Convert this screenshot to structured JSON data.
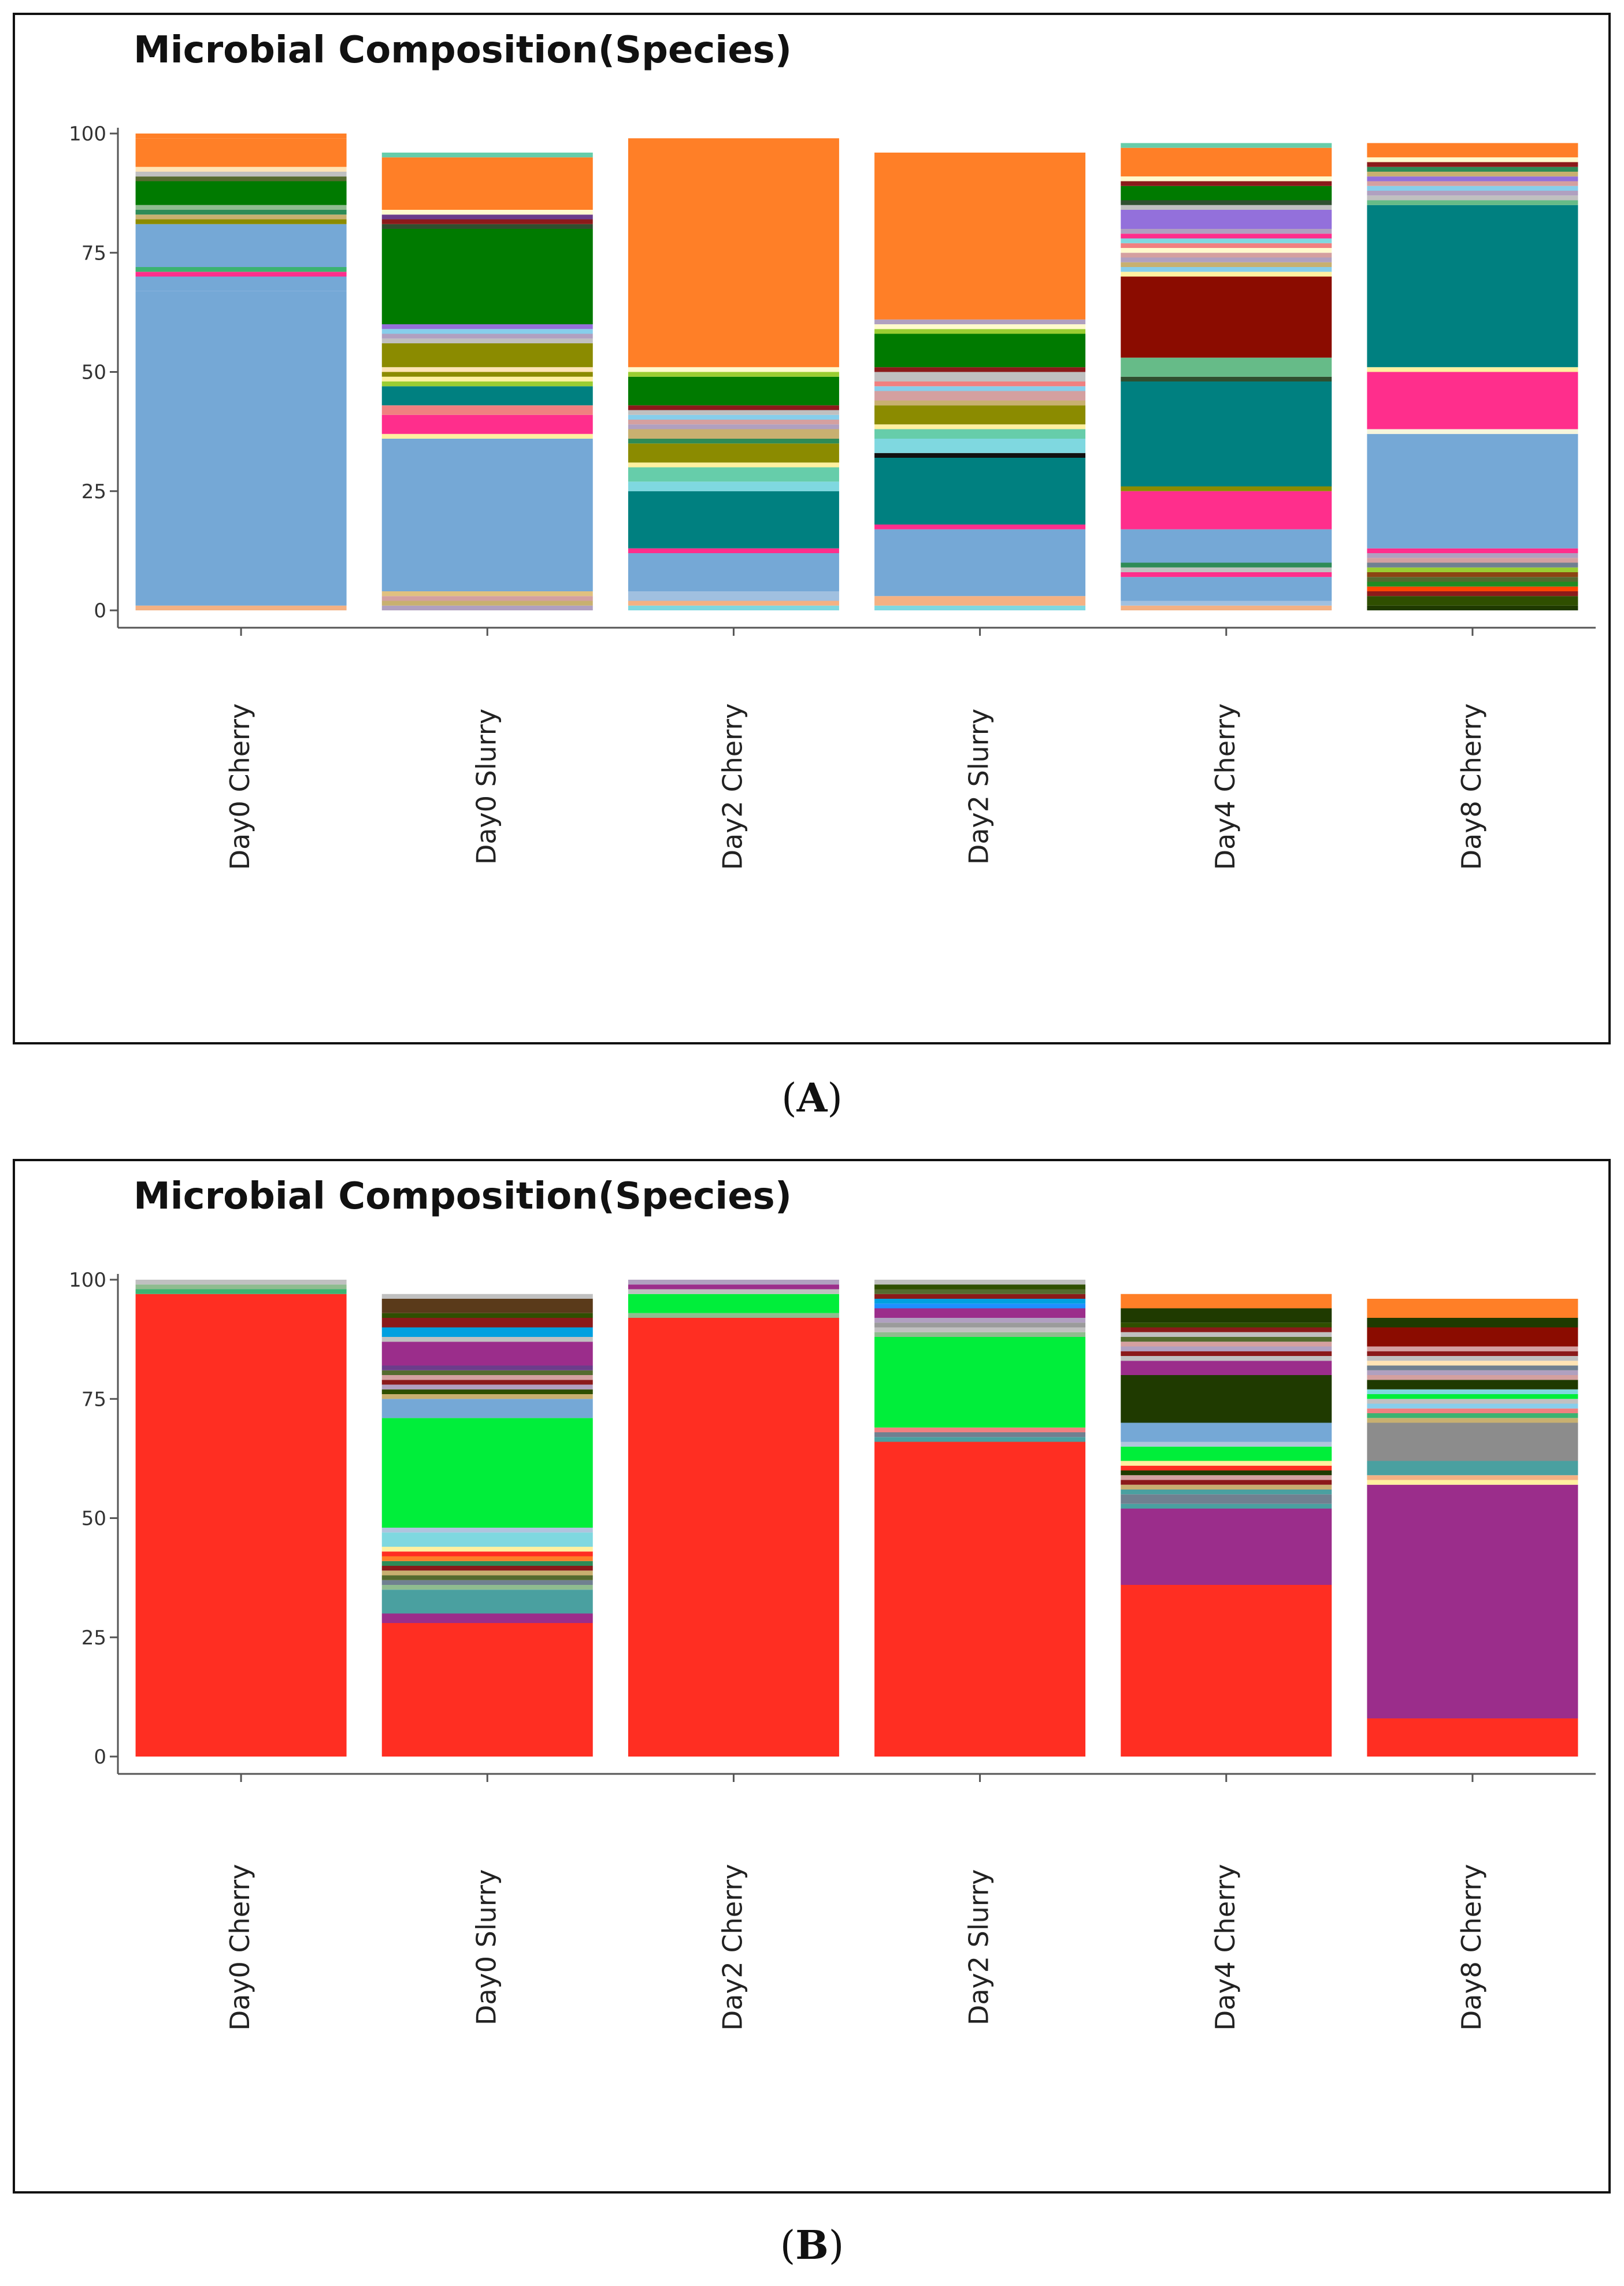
{
  "figure": {
    "caption_a": "A",
    "caption_b": "B"
  },
  "colors": {
    "axis": "#555555",
    "tick_text": "#333333",
    "label_text": "#222222"
  },
  "chart_data": [
    {
      "type": "bar",
      "stacked": true,
      "title": "Microbial Composition(Species)",
      "xlabel": "",
      "ylabel": "",
      "ylim": [
        0,
        100
      ],
      "yticks": [
        0,
        25,
        50,
        75,
        100
      ],
      "grid": false,
      "categories": [
        "Day0 Cherry",
        "Day0 Slurry",
        "Day2 Cherry",
        "Day2 Slurry",
        "Day4 Cherry",
        "Day8 Cherry"
      ],
      "stacks": [
        [
          {
            "v": 1,
            "c": "#f4b183"
          },
          {
            "v": 66,
            "c": "#75a8d6"
          },
          {
            "v": 3,
            "c": "#75a8d6"
          },
          {
            "v": 1,
            "c": "#ff2e8c"
          },
          {
            "v": 1,
            "c": "#3cb371"
          },
          {
            "v": 9,
            "c": "#75a8d6"
          },
          {
            "v": 1,
            "c": "#8b8b00"
          },
          {
            "v": 1,
            "c": "#c8b070"
          },
          {
            "v": 1,
            "c": "#2e8b57"
          },
          {
            "v": 1,
            "c": "#8fbc8f"
          },
          {
            "v": 5,
            "c": "#007a00"
          },
          {
            "v": 1,
            "c": "#556b2f"
          },
          {
            "v": 1,
            "c": "#c0c0c0"
          },
          {
            "v": 1,
            "c": "#ffe4b5"
          },
          {
            "v": 6,
            "c": "#ff7f27"
          },
          {
            "v": 1,
            "c": "#ff7f27"
          }
        ],
        [
          {
            "v": 1,
            "c": "#b0a0c0"
          },
          {
            "v": 1,
            "c": "#c8b070"
          },
          {
            "v": 1,
            "c": "#d4a0a0"
          },
          {
            "v": 1,
            "c": "#e0c080"
          },
          {
            "v": 32,
            "c": "#75a8d6"
          },
          {
            "v": 1,
            "c": "#fff0a0"
          },
          {
            "v": 4,
            "c": "#ff2e8c"
          },
          {
            "v": 2,
            "c": "#f08080"
          },
          {
            "v": 4,
            "c": "#008080"
          },
          {
            "v": 1,
            "c": "#9acd32"
          },
          {
            "v": 1,
            "c": "#fff0a0"
          },
          {
            "v": 1,
            "c": "#8b8b00"
          },
          {
            "v": 1,
            "c": "#ffe4b5"
          },
          {
            "v": 5,
            "c": "#8b8b00"
          },
          {
            "v": 1,
            "c": "#c0c0c0"
          },
          {
            "v": 1,
            "c": "#b0a0c0"
          },
          {
            "v": 1,
            "c": "#87ceeb"
          },
          {
            "v": 1,
            "c": "#9370db"
          },
          {
            "v": 20,
            "c": "#007a00"
          },
          {
            "v": 1,
            "c": "#2f4f2f"
          },
          {
            "v": 1,
            "c": "#8b1a1a"
          },
          {
            "v": 1,
            "c": "#6b3d8b"
          },
          {
            "v": 1,
            "c": "#fffacd"
          },
          {
            "v": 11,
            "c": "#ff7f27"
          },
          {
            "v": 1,
            "c": "#66cdaa"
          }
        ],
        [
          {
            "v": 1,
            "c": "#7fd8e0"
          },
          {
            "v": 1,
            "c": "#f4b183"
          },
          {
            "v": 2,
            "c": "#a0c0e0"
          },
          {
            "v": 8,
            "c": "#75a8d6"
          },
          {
            "v": 1,
            "c": "#ff2e8c"
          },
          {
            "v": 12,
            "c": "#008080"
          },
          {
            "v": 2,
            "c": "#7fd8e0"
          },
          {
            "v": 3,
            "c": "#66cdaa"
          },
          {
            "v": 1,
            "c": "#fff0a0"
          },
          {
            "v": 4,
            "c": "#8b8b00"
          },
          {
            "v": 1,
            "c": "#2e8b57"
          },
          {
            "v": 2,
            "c": "#c8b070"
          },
          {
            "v": 1,
            "c": "#b0a0c0"
          },
          {
            "v": 1,
            "c": "#d4a0a0"
          },
          {
            "v": 1,
            "c": "#87ceeb"
          },
          {
            "v": 1,
            "c": "#c0c0c0"
          },
          {
            "v": 1,
            "c": "#8b1a1a"
          },
          {
            "v": 6,
            "c": "#007a00"
          },
          {
            "v": 1,
            "c": "#9acd32"
          },
          {
            "v": 1,
            "c": "#fffacd"
          },
          {
            "v": 48,
            "c": "#ff7f27"
          }
        ],
        [
          {
            "v": 1,
            "c": "#7fd8e0"
          },
          {
            "v": 2,
            "c": "#f4b183"
          },
          {
            "v": 14,
            "c": "#75a8d6"
          },
          {
            "v": 1,
            "c": "#ff2e8c"
          },
          {
            "v": 14,
            "c": "#008080"
          },
          {
            "v": 1,
            "c": "#111111"
          },
          {
            "v": 3,
            "c": "#7fd8e0"
          },
          {
            "v": 2,
            "c": "#66cdaa"
          },
          {
            "v": 1,
            "c": "#fff0a0"
          },
          {
            "v": 4,
            "c": "#8b8b00"
          },
          {
            "v": 1,
            "c": "#c8b070"
          },
          {
            "v": 2,
            "c": "#d4a0a0"
          },
          {
            "v": 1,
            "c": "#87ceeb"
          },
          {
            "v": 1,
            "c": "#f08080"
          },
          {
            "v": 2,
            "c": "#c0c0c0"
          },
          {
            "v": 1,
            "c": "#8b1a1a"
          },
          {
            "v": 7,
            "c": "#007a00"
          },
          {
            "v": 1,
            "c": "#9acd32"
          },
          {
            "v": 1,
            "c": "#fffacd"
          },
          {
            "v": 1,
            "c": "#b0a0c0"
          },
          {
            "v": 35,
            "c": "#ff7f27"
          }
        ],
        [
          {
            "v": 1,
            "c": "#f4b183"
          },
          {
            "v": 1,
            "c": "#a0c0e0"
          },
          {
            "v": 5,
            "c": "#75a8d6"
          },
          {
            "v": 1,
            "c": "#ff2e8c"
          },
          {
            "v": 1,
            "c": "#c0c0c0"
          },
          {
            "v": 1,
            "c": "#2e8b57"
          },
          {
            "v": 7,
            "c": "#75a8d6"
          },
          {
            "v": 8,
            "c": "#ff2e8c"
          },
          {
            "v": 1,
            "c": "#8b8b00"
          },
          {
            "v": 22,
            "c": "#008080"
          },
          {
            "v": 1,
            "c": "#2f4f2f"
          },
          {
            "v": 4,
            "c": "#66bb88"
          },
          {
            "v": 17,
            "c": "#8b0c00"
          },
          {
            "v": 1,
            "c": "#fff0a0"
          },
          {
            "v": 1,
            "c": "#87ceeb"
          },
          {
            "v": 1,
            "c": "#c8b070"
          },
          {
            "v": 1,
            "c": "#b0a0c0"
          },
          {
            "v": 1,
            "c": "#d4a0a0"
          },
          {
            "v": 1,
            "c": "#fffacd"
          },
          {
            "v": 1,
            "c": "#f08080"
          },
          {
            "v": 1,
            "c": "#7fd8e0"
          },
          {
            "v": 1,
            "c": "#ff2e8c"
          },
          {
            "v": 1,
            "c": "#b0a0c0"
          },
          {
            "v": 4,
            "c": "#9370db"
          },
          {
            "v": 1,
            "c": "#c0c0c0"
          },
          {
            "v": 1,
            "c": "#2f4f2f"
          },
          {
            "v": 3,
            "c": "#007a00"
          },
          {
            "v": 1,
            "c": "#8b1a1a"
          },
          {
            "v": 1,
            "c": "#fffacd"
          },
          {
            "v": 6,
            "c": "#ff7f27"
          },
          {
            "v": 1,
            "c": "#66cdaa"
          }
        ],
        [
          {
            "v": 1,
            "c": "#1f3a00"
          },
          {
            "v": 2,
            "c": "#2f4f00"
          },
          {
            "v": 1,
            "c": "#8b1a1a"
          },
          {
            "v": 1,
            "c": "#ff4500"
          },
          {
            "v": 1,
            "c": "#228b22"
          },
          {
            "v": 1,
            "c": "#556b2f"
          },
          {
            "v": 1,
            "c": "#8b4513"
          },
          {
            "v": 1,
            "c": "#9acd32"
          },
          {
            "v": 1,
            "c": "#708090"
          },
          {
            "v": 1,
            "c": "#d4a0a0"
          },
          {
            "v": 1,
            "c": "#b0a0c0"
          },
          {
            "v": 1,
            "c": "#ff2e8c"
          },
          {
            "v": 24,
            "c": "#75a8d6"
          },
          {
            "v": 1,
            "c": "#f5f5dc"
          },
          {
            "v": 12,
            "c": "#ff2e8c"
          },
          {
            "v": 1,
            "c": "#fff0a0"
          },
          {
            "v": 34,
            "c": "#008080"
          },
          {
            "v": 1,
            "c": "#66bb88"
          },
          {
            "v": 1,
            "c": "#c0c0c0"
          },
          {
            "v": 1,
            "c": "#b0a0c0"
          },
          {
            "v": 1,
            "c": "#87ceeb"
          },
          {
            "v": 1,
            "c": "#d4a0a0"
          },
          {
            "v": 1,
            "c": "#9370db"
          },
          {
            "v": 1,
            "c": "#c8b070"
          },
          {
            "v": 1,
            "c": "#2e8b57"
          },
          {
            "v": 1,
            "c": "#8b1a1a"
          },
          {
            "v": 1,
            "c": "#fffacd"
          },
          {
            "v": 3,
            "c": "#ff7f27"
          }
        ]
      ]
    },
    {
      "type": "bar",
      "stacked": true,
      "title": "Microbial Composition(Species)",
      "xlabel": "",
      "ylabel": "",
      "ylim": [
        0,
        100
      ],
      "yticks": [
        0,
        25,
        50,
        75,
        100
      ],
      "grid": false,
      "categories": [
        "Day0 Cherry",
        "Day0 Slurry",
        "Day2 Cherry",
        "Day2 Slurry",
        "Day4 Cherry",
        "Day8 Cherry"
      ],
      "stacks": [
        [
          {
            "v": 97,
            "c": "#ff2e22"
          },
          {
            "v": 1,
            "c": "#3cb371"
          },
          {
            "v": 1,
            "c": "#8fbc8f"
          },
          {
            "v": 1,
            "c": "#c0c0c0"
          }
        ],
        [
          {
            "v": 28,
            "c": "#ff2e22"
          },
          {
            "v": 2,
            "c": "#9b2d8b"
          },
          {
            "v": 5,
            "c": "#4aa0a0"
          },
          {
            "v": 1,
            "c": "#8fbc8f"
          },
          {
            "v": 1,
            "c": "#708090"
          },
          {
            "v": 1,
            "c": "#556b2f"
          },
          {
            "v": 1,
            "c": "#c8b070"
          },
          {
            "v": 1,
            "c": "#8b1a1a"
          },
          {
            "v": 1,
            "c": "#2e8b57"
          },
          {
            "v": 1,
            "c": "#ff7f27"
          },
          {
            "v": 1,
            "c": "#ff2e22"
          },
          {
            "v": 1,
            "c": "#fff0a0"
          },
          {
            "v": 3,
            "c": "#7fd8e0"
          },
          {
            "v": 1,
            "c": "#b0c4de"
          },
          {
            "v": 23,
            "c": "#00ee3a"
          },
          {
            "v": 4,
            "c": "#75a8d6"
          },
          {
            "v": 1,
            "c": "#c8b070"
          },
          {
            "v": 1,
            "c": "#2f4f00"
          },
          {
            "v": 1,
            "c": "#b0a0c0"
          },
          {
            "v": 1,
            "c": "#8b1a1a"
          },
          {
            "v": 1,
            "c": "#d4a0a0"
          },
          {
            "v": 1,
            "c": "#556b2f"
          },
          {
            "v": 1,
            "c": "#6b3d8b"
          },
          {
            "v": 5,
            "c": "#9b2d8b"
          },
          {
            "v": 1,
            "c": "#c0c0c0"
          },
          {
            "v": 2,
            "c": "#00a0e0"
          },
          {
            "v": 2,
            "c": "#8b1a1a"
          },
          {
            "v": 1,
            "c": "#2f4f00"
          },
          {
            "v": 3,
            "c": "#5a3a1a"
          },
          {
            "v": 1,
            "c": "#c0c0c0"
          }
        ],
        [
          {
            "v": 92,
            "c": "#ff2e22"
          },
          {
            "v": 1,
            "c": "#8fbc8f"
          },
          {
            "v": 4,
            "c": "#00ee3a"
          },
          {
            "v": 1,
            "c": "#c0c0c0"
          },
          {
            "v": 1,
            "c": "#9b2d8b"
          },
          {
            "v": 1,
            "c": "#b0a0c0"
          }
        ],
        [
          {
            "v": 66,
            "c": "#ff2e22"
          },
          {
            "v": 1,
            "c": "#4aa0a0"
          },
          {
            "v": 1,
            "c": "#708090"
          },
          {
            "v": 1,
            "c": "#f08080"
          },
          {
            "v": 19,
            "c": "#00ee3a"
          },
          {
            "v": 1,
            "c": "#8fbc8f"
          },
          {
            "v": 1,
            "c": "#c0c0c0"
          },
          {
            "v": 1,
            "c": "#9b9b9b"
          },
          {
            "v": 1,
            "c": "#b0a0c0"
          },
          {
            "v": 2,
            "c": "#9b2d8b"
          },
          {
            "v": 1,
            "c": "#1e90ff"
          },
          {
            "v": 1,
            "c": "#00a0e0"
          },
          {
            "v": 1,
            "c": "#8b1a1a"
          },
          {
            "v": 1,
            "c": "#556b2f"
          },
          {
            "v": 1,
            "c": "#2f4f00"
          },
          {
            "v": 1,
            "c": "#c0c0c0"
          }
        ],
        [
          {
            "v": 36,
            "c": "#ff2e22"
          },
          {
            "v": 16,
            "c": "#9b2d8b"
          },
          {
            "v": 1,
            "c": "#4aa0a0"
          },
          {
            "v": 2,
            "c": "#708090"
          },
          {
            "v": 1,
            "c": "#4aa0a0"
          },
          {
            "v": 1,
            "c": "#c8b070"
          },
          {
            "v": 1,
            "c": "#8b1a1a"
          },
          {
            "v": 1,
            "c": "#d4a0a0"
          },
          {
            "v": 1,
            "c": "#1f3a00"
          },
          {
            "v": 1,
            "c": "#ff2e22"
          },
          {
            "v": 1,
            "c": "#fff0a0"
          },
          {
            "v": 3,
            "c": "#00ee3a"
          },
          {
            "v": 1,
            "c": "#b0c4de"
          },
          {
            "v": 4,
            "c": "#75a8d6"
          },
          {
            "v": 10,
            "c": "#1f3a00"
          },
          {
            "v": 3,
            "c": "#9b2d8b"
          },
          {
            "v": 1,
            "c": "#c0c0c0"
          },
          {
            "v": 1,
            "c": "#8b1a1a"
          },
          {
            "v": 1,
            "c": "#b0a0c0"
          },
          {
            "v": 1,
            "c": "#d4a0a0"
          },
          {
            "v": 1,
            "c": "#556b2f"
          },
          {
            "v": 1,
            "c": "#c0c0c0"
          },
          {
            "v": 1,
            "c": "#8b1a1a"
          },
          {
            "v": 1,
            "c": "#2f4f00"
          },
          {
            "v": 3,
            "c": "#1f3a00"
          },
          {
            "v": 3,
            "c": "#ff7f27"
          }
        ],
        [
          {
            "v": 8,
            "c": "#ff2e22"
          },
          {
            "v": 49,
            "c": "#9b2d8b"
          },
          {
            "v": 1,
            "c": "#fff0a0"
          },
          {
            "v": 1,
            "c": "#f4b183"
          },
          {
            "v": 3,
            "c": "#4aa0a0"
          },
          {
            "v": 8,
            "c": "#8c8c8c"
          },
          {
            "v": 1,
            "c": "#c8b070"
          },
          {
            "v": 1,
            "c": "#3cb371"
          },
          {
            "v": 1,
            "c": "#f08080"
          },
          {
            "v": 1,
            "c": "#87ceeb"
          },
          {
            "v": 1,
            "c": "#c0c0c0"
          },
          {
            "v": 1,
            "c": "#00ee3a"
          },
          {
            "v": 1,
            "c": "#7fd8e0"
          },
          {
            "v": 2,
            "c": "#1f3a00"
          },
          {
            "v": 1,
            "c": "#d4a0a0"
          },
          {
            "v": 1,
            "c": "#b0a0c0"
          },
          {
            "v": 1,
            "c": "#708090"
          },
          {
            "v": 1,
            "c": "#ffe4b5"
          },
          {
            "v": 1,
            "c": "#c0c0c0"
          },
          {
            "v": 1,
            "c": "#8b1a1a"
          },
          {
            "v": 1,
            "c": "#d4a0a0"
          },
          {
            "v": 4,
            "c": "#8b0c00"
          },
          {
            "v": 2,
            "c": "#1f3a00"
          },
          {
            "v": 4,
            "c": "#ff7f27"
          }
        ]
      ]
    }
  ]
}
